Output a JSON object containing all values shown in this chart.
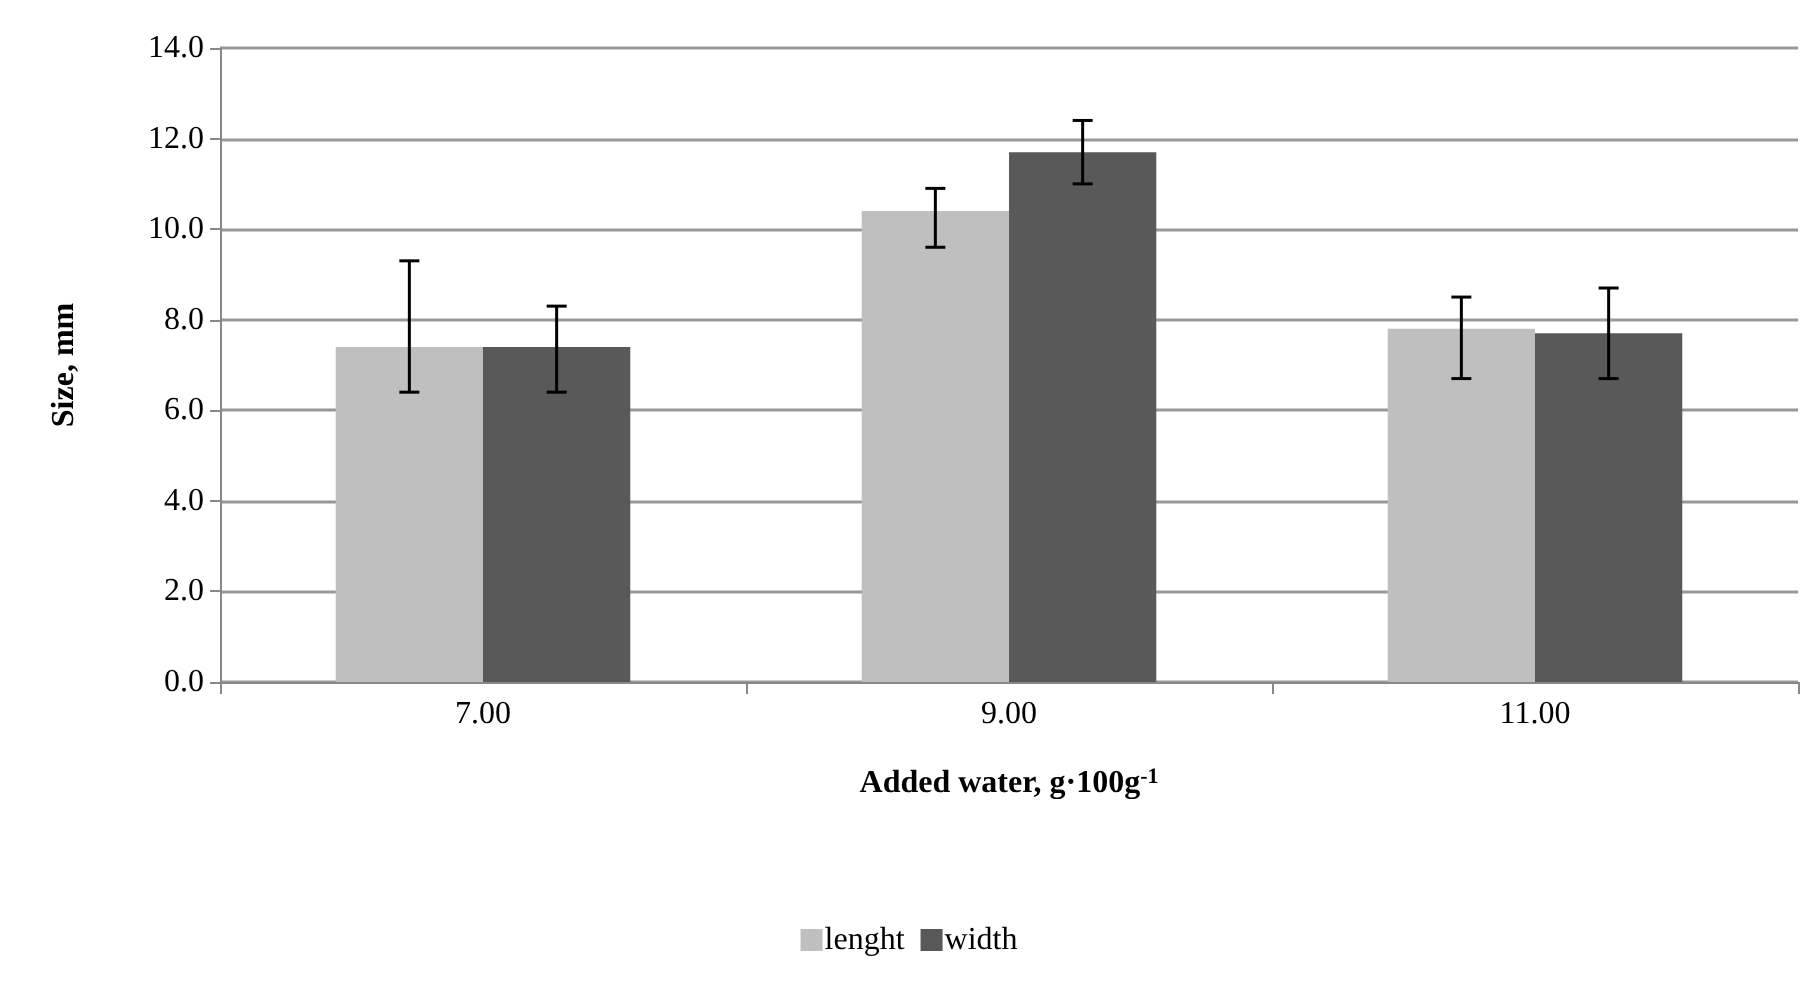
{
  "chart_data": {
    "type": "bar",
    "xlabel": "Added water, g·100g$^{-1}$",
    "ylabel": "Size, mm",
    "categories": [
      "7.00",
      "9.00",
      "11.00"
    ],
    "series": [
      {
        "name": "lenght",
        "color": "#bfbfbf",
        "values": [
          7.4,
          10.4,
          7.8
        ],
        "errors": [
          [
            6.4,
            9.3
          ],
          [
            9.6,
            10.9
          ],
          [
            6.7,
            8.5
          ]
        ]
      },
      {
        "name": "width",
        "color": "#595959",
        "values": [
          7.4,
          11.7,
          7.7
        ],
        "errors": [
          [
            6.4,
            8.3
          ],
          [
            11.0,
            12.4
          ],
          [
            6.7,
            8.7
          ]
        ]
      }
    ],
    "ylim": [
      0,
      14
    ],
    "yticks": [
      {
        "value": 0,
        "label": "0.0"
      },
      {
        "value": 2,
        "label": "2.0"
      },
      {
        "value": 4,
        "label": "4.0"
      },
      {
        "value": 6,
        "label": "6.0"
      },
      {
        "value": 8,
        "label": "8.0"
      },
      {
        "value": 10,
        "label": "10.0"
      },
      {
        "value": 12,
        "label": "12.0"
      },
      {
        "value": 14,
        "label": "14.0"
      }
    ],
    "grid": "y",
    "legend": "bottom"
  }
}
